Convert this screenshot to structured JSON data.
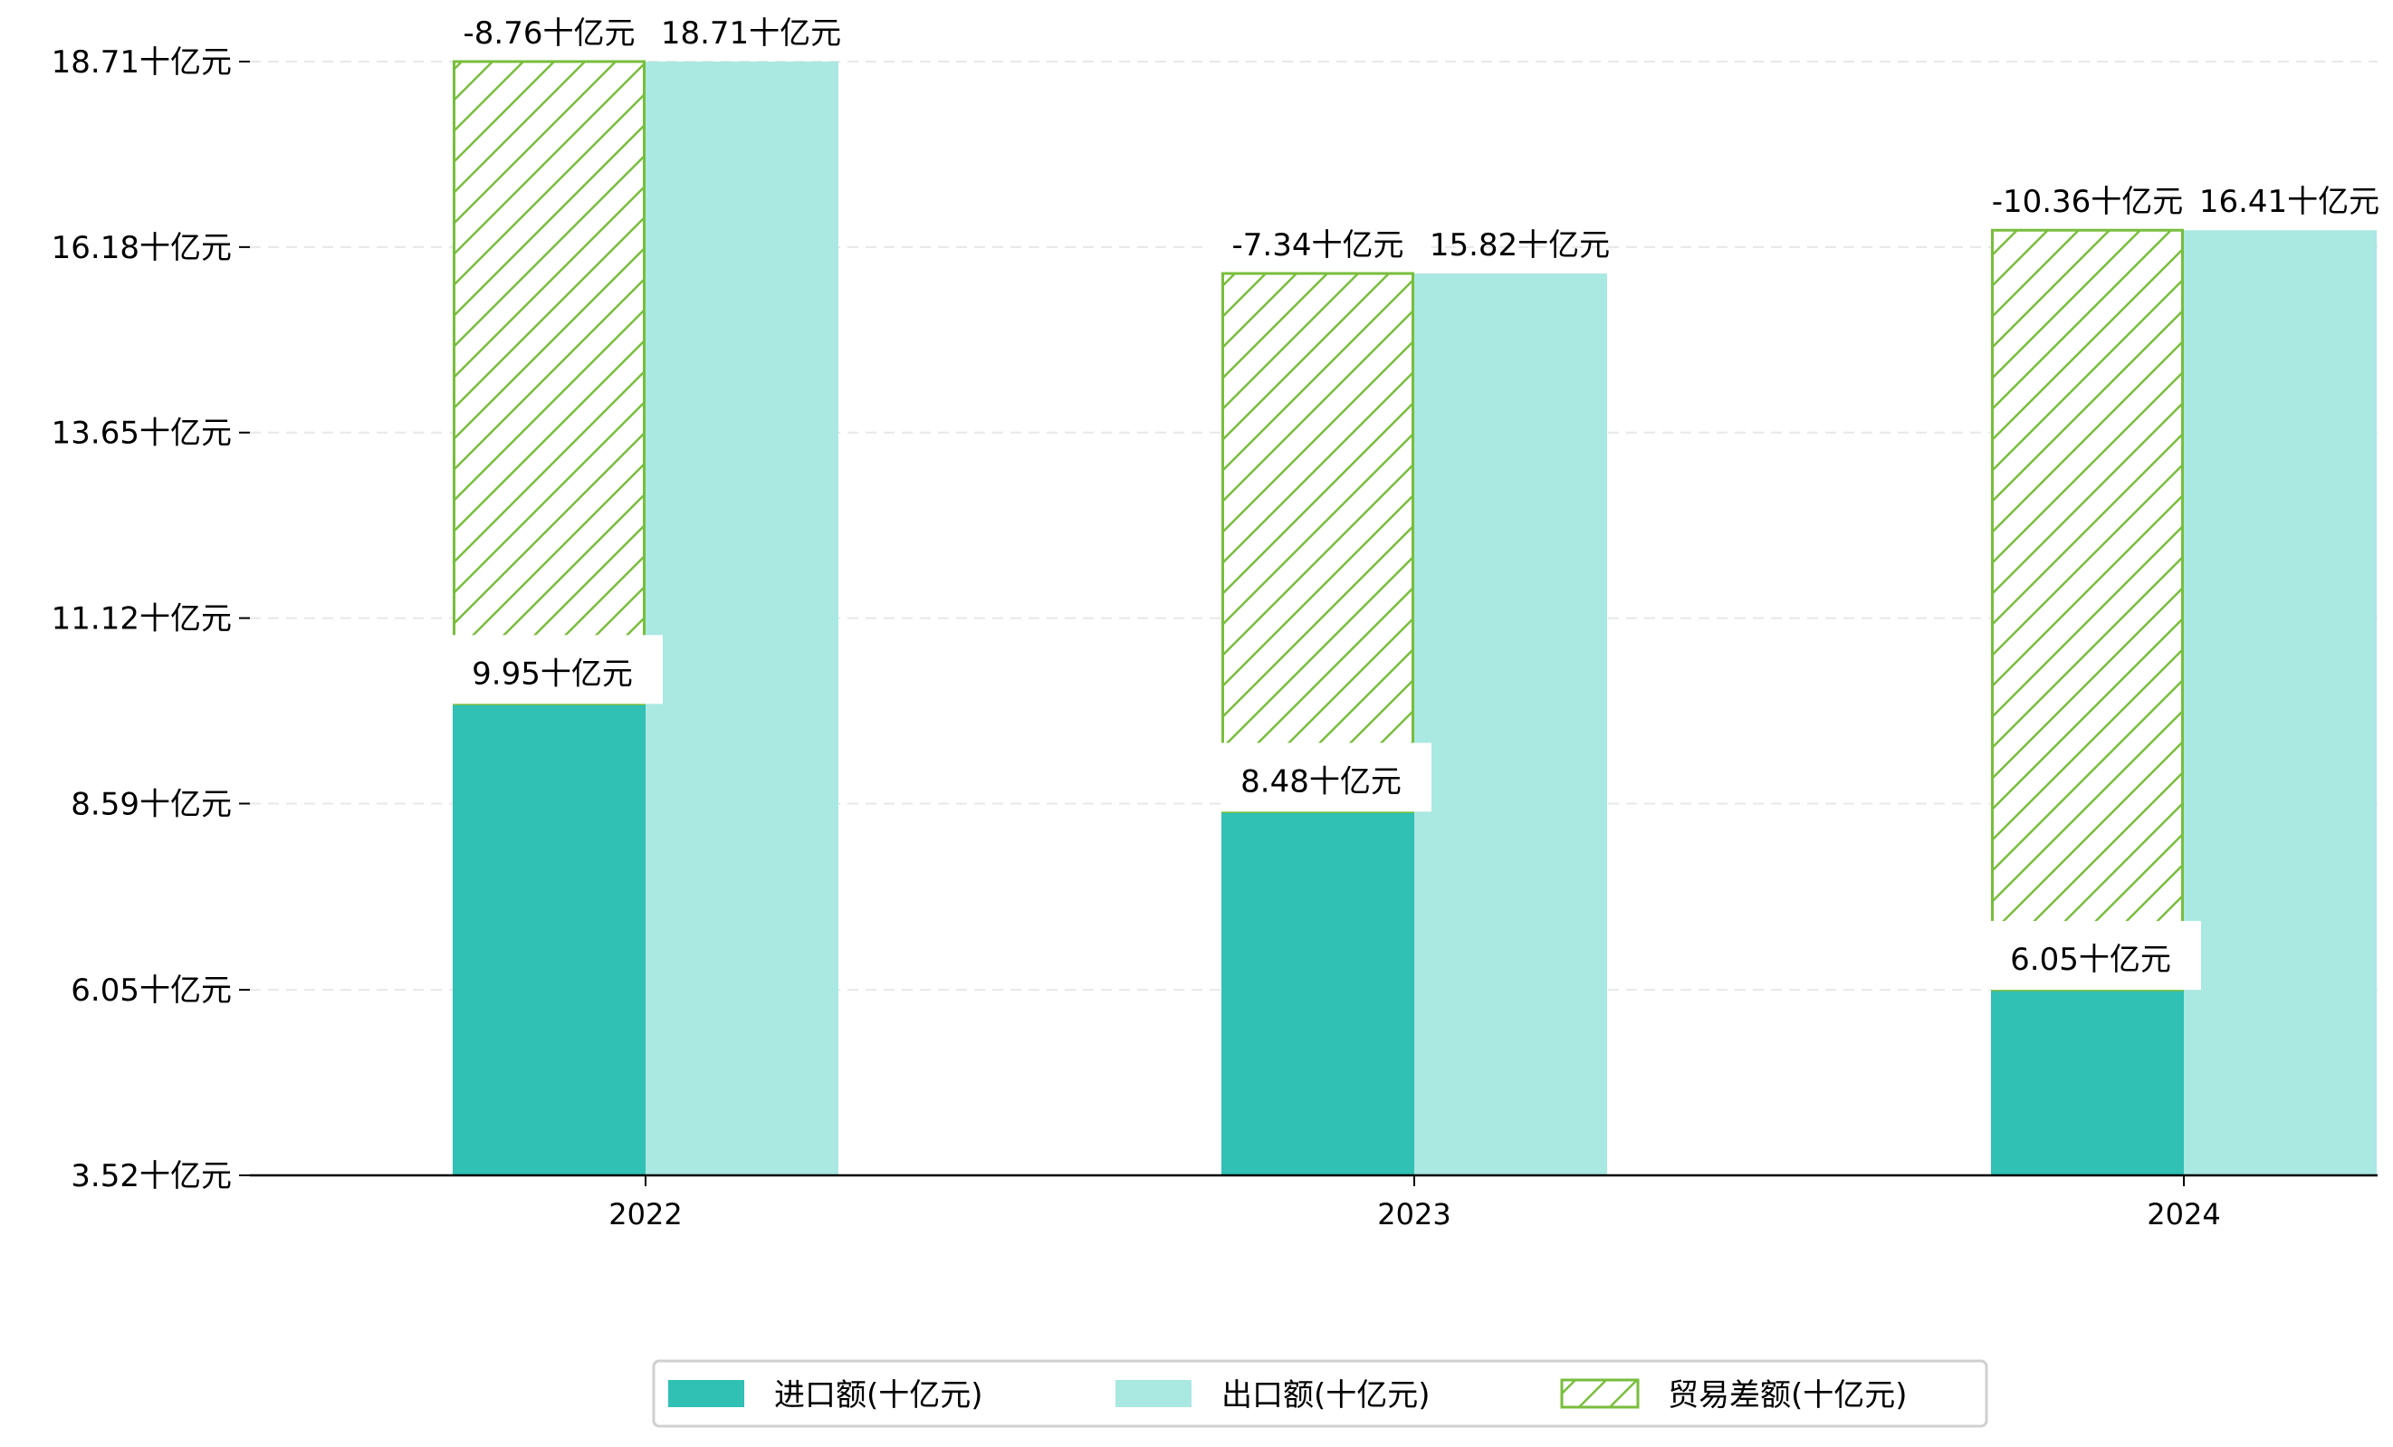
{
  "chart_data": {
    "type": "bar",
    "categories": [
      "2022",
      "2023",
      "2024"
    ],
    "series": [
      {
        "name": "进口额(十亿元)",
        "values": [
          9.95,
          8.48,
          6.05
        ],
        "color": "#30c0b4",
        "labels": [
          "9.95十亿元",
          "8.48十亿元",
          "6.05十亿元"
        ]
      },
      {
        "name": "出口额(十亿元)",
        "values": [
          18.71,
          15.82,
          16.41
        ],
        "color": "#aae8e2",
        "labels": [
          "18.71十亿元",
          "15.82十亿元",
          "16.41十亿元"
        ]
      },
      {
        "name": "贸易差额(十亿元)",
        "values": [
          -8.76,
          -7.34,
          -10.36
        ],
        "color": "#78be3c",
        "hatch": true,
        "labels": [
          "-8.76十亿元",
          "-7.34十亿元",
          "-10.36十亿元"
        ]
      }
    ],
    "yticks": [
      3.52,
      6.05,
      8.59,
      11.12,
      13.65,
      16.18,
      18.71
    ],
    "ytick_labels": [
      "3.52十亿元",
      "6.05十亿元",
      "8.59十亿元",
      "11.12十亿元",
      "13.65十亿元",
      "16.18十亿元",
      "18.71十亿元"
    ],
    "ylim": [
      3.52,
      18.71
    ],
    "grid": "horizontal dashed",
    "legend_position": "bottom-center",
    "title": "",
    "xlabel": "",
    "ylabel": ""
  }
}
